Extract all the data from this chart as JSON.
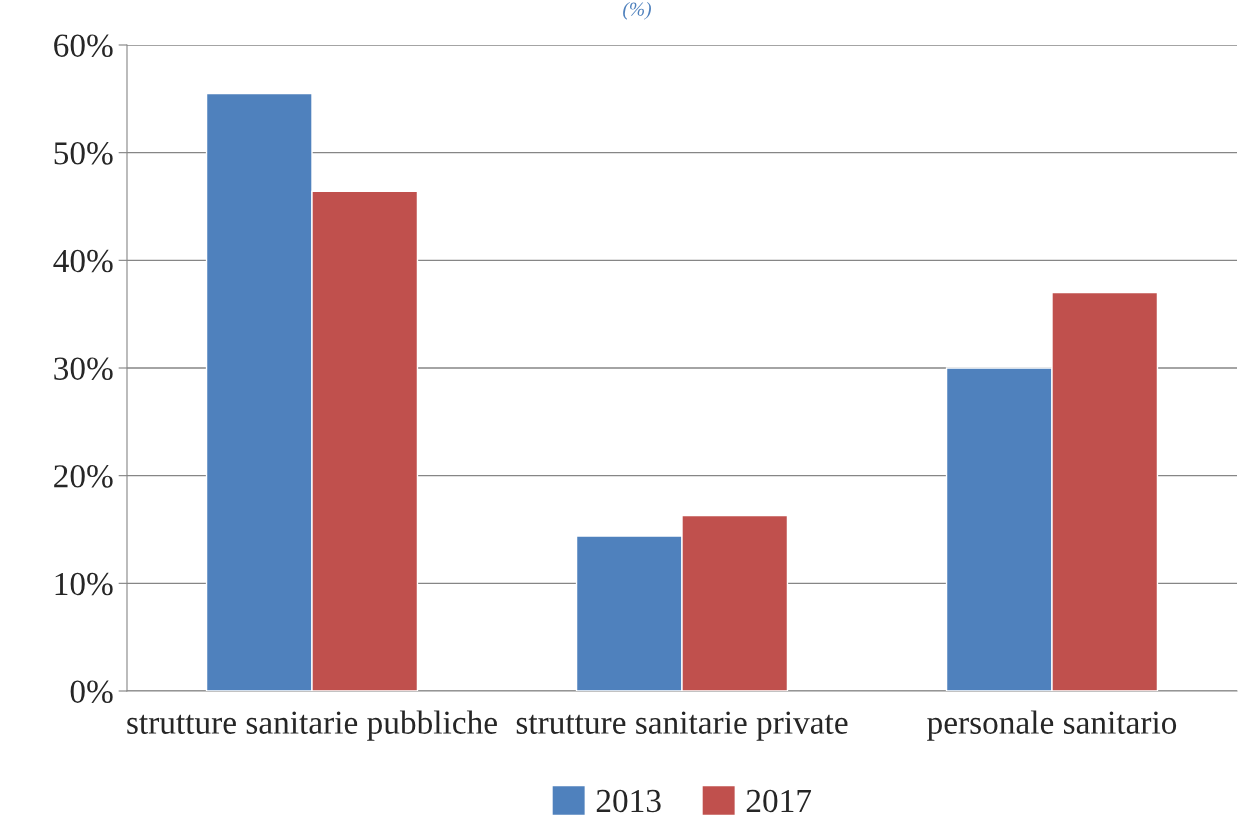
{
  "chart_data": {
    "type": "bar",
    "title": "(%)",
    "categories": [
      "strutture sanitarie pubbliche",
      "strutture sanitarie private",
      "personale sanitario"
    ],
    "series": [
      {
        "name": "2013",
        "color": "#4f81bd",
        "values": [
          55.5,
          14.4,
          30.0
        ]
      },
      {
        "name": "2017",
        "color": "#c0504d",
        "values": [
          46.4,
          16.3,
          37.0
        ]
      }
    ],
    "ylim": [
      0,
      60
    ],
    "yticks": [
      {
        "value": 0,
        "label": "0%"
      },
      {
        "value": 10,
        "label": "10%"
      },
      {
        "value": 20,
        "label": "20%"
      },
      {
        "value": 30,
        "label": "30%"
      },
      {
        "value": 40,
        "label": "40%"
      },
      {
        "value": 50,
        "label": "50%"
      },
      {
        "value": 60,
        "label": "60%"
      }
    ],
    "grid": "y",
    "legend": "bottom"
  }
}
